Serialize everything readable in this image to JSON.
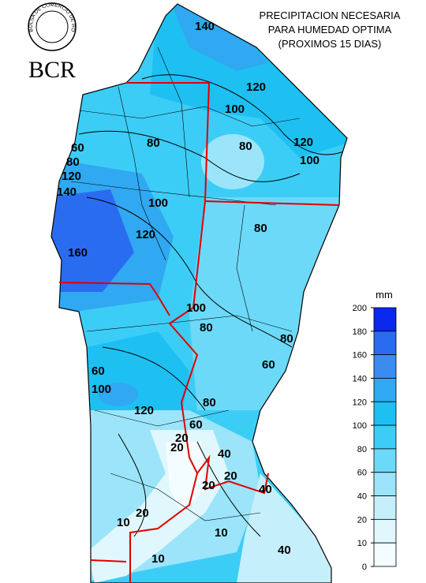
{
  "header": {
    "title_lines": [
      "PRECIPITACION NECESARIA",
      "PARA HUMEDAD OPTIMA",
      "(PROXIMOS 15 DIAS)"
    ],
    "logo": "BCR",
    "seal_text": "BOLSA DE COMERCIO DE ROSARIO"
  },
  "legend": {
    "unit": "mm",
    "ticks": [
      200,
      180,
      160,
      140,
      120,
      100,
      80,
      60,
      40,
      20,
      10,
      0
    ],
    "colors": [
      "#0a28ee",
      "#2a6cf0",
      "#3a8cf0",
      "#30a8f2",
      "#1ec0f2",
      "#3ccdf6",
      "#6cd9f8",
      "#9ce4fa",
      "#c6effc",
      "#e0f7fd",
      "#f3fcfe"
    ]
  },
  "contour_labels": [
    "140",
    "120",
    "100",
    "80",
    "120",
    "100",
    "80",
    "60",
    "80",
    "120",
    "140",
    "100",
    "120",
    "160",
    "80",
    "100",
    "80",
    "80",
    "60",
    "60",
    "100",
    "120",
    "80",
    "60",
    "20",
    "20",
    "40",
    "20",
    "20",
    "10",
    "40",
    "10",
    "10",
    "20",
    "40"
  ]
}
